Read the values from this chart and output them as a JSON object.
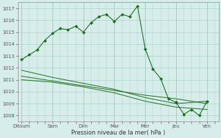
{
  "xlabel": "Pression niveau de la mer( hPa )",
  "bg_color": "#d6edea",
  "grid_color": "#aacfcb",
  "line_color": "#1a6b1a",
  "ylim": [
    1007.5,
    1017.5
  ],
  "yticks": [
    1008,
    1009,
    1010,
    1011,
    1012,
    1013,
    1014,
    1015,
    1016,
    1017
  ],
  "day_labels": [
    "Ditoum",
    "Sam",
    "Dim",
    "Mar",
    "Mer",
    "Jeu",
    "Ven"
  ],
  "day_positions": [
    0,
    4,
    8,
    12,
    16,
    20,
    24
  ],
  "xlim": [
    -0.5,
    25.5
  ],
  "series1_x": [
    0,
    1,
    2,
    3,
    4,
    5,
    6,
    7,
    8,
    9,
    10,
    11,
    12,
    13,
    14,
    15,
    16,
    17,
    18,
    19,
    20,
    21,
    22,
    23,
    24
  ],
  "series1_y": [
    1012.7,
    1013.1,
    1013.5,
    1014.3,
    1014.9,
    1015.3,
    1015.2,
    1015.5,
    1015.0,
    1015.8,
    1016.3,
    1016.5,
    1015.9,
    1016.5,
    1016.3,
    1017.2,
    1013.6,
    1011.9,
    1011.1,
    1009.4,
    1009.1,
    1008.1,
    1008.5,
    1008.0,
    1009.2
  ],
  "series1_marker_end": 20,
  "series2_x": [
    0,
    4,
    8,
    12,
    16,
    20,
    24
  ],
  "series2_y": [
    1011.8,
    1011.2,
    1010.7,
    1010.2,
    1009.5,
    1009.0,
    1009.2
  ],
  "series3_x": [
    0,
    4,
    8,
    12,
    16,
    20,
    24
  ],
  "series3_y": [
    1011.0,
    1010.8,
    1010.4,
    1009.9,
    1009.2,
    1008.7,
    1008.5
  ],
  "series4_x": [
    0,
    4,
    8,
    12,
    16,
    20,
    24
  ],
  "series4_y": [
    1011.3,
    1010.9,
    1010.5,
    1010.1,
    1009.7,
    1009.4,
    1009.0
  ]
}
